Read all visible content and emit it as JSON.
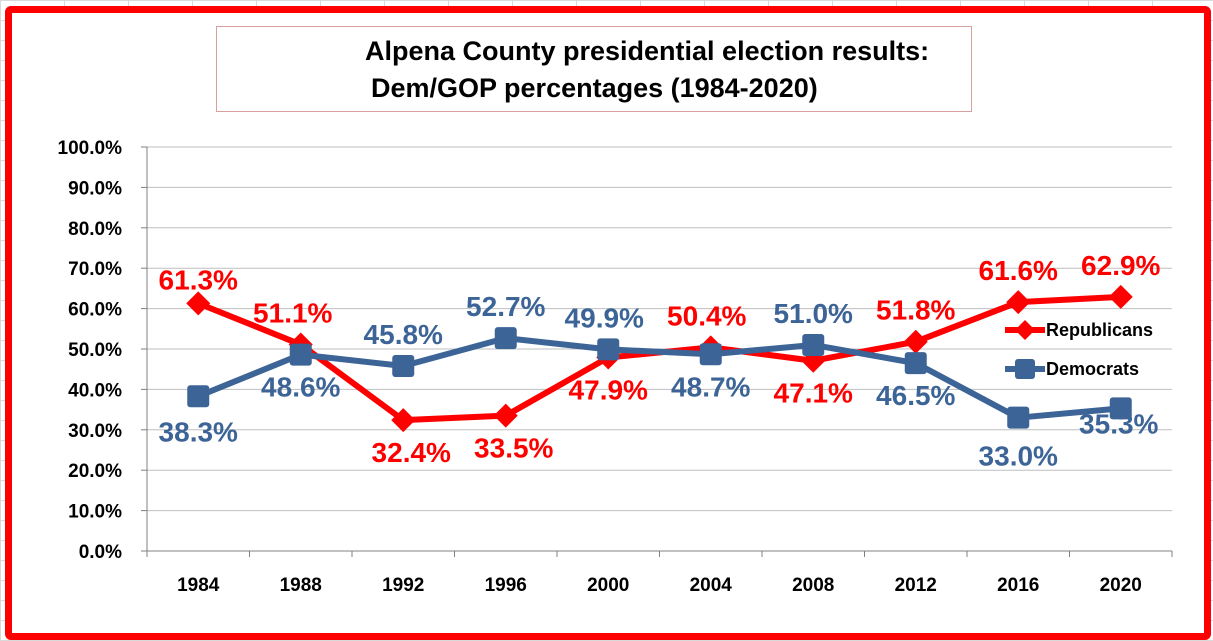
{
  "chart_data": {
    "type": "line",
    "title_line1": "Alpena County presidential election results:",
    "title_line2": "Dem/GOP percentages (1984-2020)",
    "categories": [
      "1984",
      "1988",
      "1992",
      "1996",
      "2000",
      "2004",
      "2008",
      "2012",
      "2016",
      "2020"
    ],
    "y_ticks": [
      "0.0%",
      "10.0%",
      "20.0%",
      "30.0%",
      "40.0%",
      "50.0%",
      "60.0%",
      "70.0%",
      "80.0%",
      "90.0%",
      "100.0%"
    ],
    "ylim": [
      0,
      100
    ],
    "xlabel": "",
    "ylabel": "",
    "grid": "horizontal",
    "legend_position": "right",
    "series": [
      {
        "name": "Republicans",
        "color": "#ff0000",
        "marker": "diamond",
        "values": [
          61.3,
          51.1,
          32.4,
          33.5,
          47.9,
          50.4,
          47.1,
          51.8,
          61.6,
          62.9
        ],
        "labels": [
          "61.3%",
          "51.1%",
          "32.4%",
          "33.5%",
          "47.9%",
          "50.4%",
          "47.1%",
          "51.8%",
          "61.6%",
          "62.9%"
        ]
      },
      {
        "name": "Democrats",
        "color": "#3c6496",
        "marker": "square",
        "values": [
          38.3,
          48.6,
          45.8,
          52.7,
          49.9,
          48.7,
          51.0,
          46.5,
          33.0,
          35.3
        ],
        "labels": [
          "38.3%",
          "48.6%",
          "45.8%",
          "52.7%",
          "49.9%",
          "48.7%",
          "51.0%",
          "46.5%",
          "33.0%",
          "35.3%"
        ]
      }
    ]
  }
}
